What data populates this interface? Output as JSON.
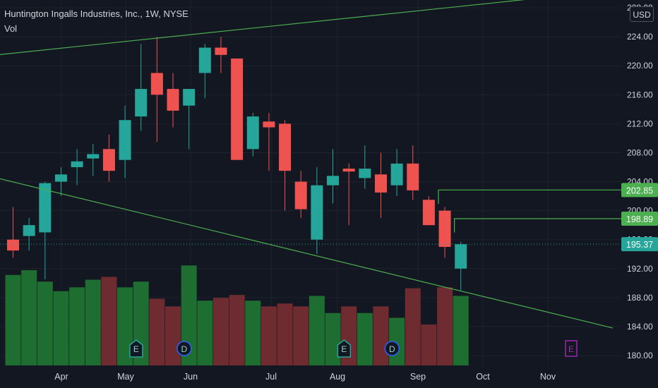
{
  "header": {
    "symbol_title": "Huntington Ingalls Industries, Inc., 1W, NYSE",
    "volume_label": "Vol"
  },
  "currency_button": "USD",
  "theme": {
    "background": "#131722",
    "grid": "#1e222d",
    "text": "#d1d4dc",
    "bull": "#26a69a",
    "bear": "#ef5350",
    "bull_vol": "#1f6e31",
    "bear_vol": "#6e2c30",
    "trendline": "#4caf50",
    "price_line": "#26a69a",
    "earnings": "#26a69a",
    "earnings_future": "#9c27b0",
    "dividend": "#2962ff"
  },
  "chart_data": {
    "type": "candlestick",
    "title": "Huntington Ingalls Industries, Inc., 1W, NYSE",
    "ylim": [
      180,
      228
    ],
    "y_ticks": [
      "180.00",
      "184.00",
      "188.00",
      "192.00",
      "196.00",
      "200.00",
      "204.00",
      "208.00",
      "212.00",
      "216.00",
      "220.00",
      "224.00",
      "228.00"
    ],
    "x_ticks": [
      "Apr",
      "May",
      "Jun",
      "Jul",
      "Aug",
      "Sep",
      "Oct",
      "Nov"
    ],
    "candles": [
      {
        "o": 196.0,
        "h": 200.5,
        "l": 193.5,
        "c": 194.5,
        "dir": "down"
      },
      {
        "o": 196.5,
        "h": 199.0,
        "l": 194.5,
        "c": 198.0,
        "dir": "up"
      },
      {
        "o": 197.0,
        "h": 204.0,
        "l": 190.5,
        "c": 203.8,
        "dir": "up"
      },
      {
        "o": 204.0,
        "h": 206.0,
        "l": 202.0,
        "c": 205.0,
        "dir": "up"
      },
      {
        "o": 206.0,
        "h": 208.5,
        "l": 203.5,
        "c": 206.8,
        "dir": "up"
      },
      {
        "o": 207.2,
        "h": 209.2,
        "l": 204.8,
        "c": 207.8,
        "dir": "up"
      },
      {
        "o": 208.5,
        "h": 210.5,
        "l": 204.0,
        "c": 205.5,
        "dir": "down"
      },
      {
        "o": 207.0,
        "h": 214.5,
        "l": 204.5,
        "c": 212.5,
        "dir": "up"
      },
      {
        "o": 213.0,
        "h": 223.0,
        "l": 211.0,
        "c": 216.8,
        "dir": "up"
      },
      {
        "o": 219.0,
        "h": 224.0,
        "l": 209.5,
        "c": 216.0,
        "dir": "down"
      },
      {
        "o": 216.8,
        "h": 219.0,
        "l": 211.5,
        "c": 213.8,
        "dir": "down"
      },
      {
        "o": 214.5,
        "h": 216.5,
        "l": 208.5,
        "c": 216.8,
        "dir": "up"
      },
      {
        "o": 219.0,
        "h": 223.0,
        "l": 215.5,
        "c": 222.5,
        "dir": "up"
      },
      {
        "o": 222.5,
        "h": 224.0,
        "l": 219.0,
        "c": 221.5,
        "dir": "down"
      },
      {
        "o": 221.0,
        "h": 221.0,
        "l": 207.0,
        "c": 207.0,
        "dir": "down"
      },
      {
        "o": 208.5,
        "h": 213.5,
        "l": 207.5,
        "c": 213.0,
        "dir": "up"
      },
      {
        "o": 212.3,
        "h": 213.5,
        "l": 205.5,
        "c": 211.5,
        "dir": "down"
      },
      {
        "o": 212.0,
        "h": 212.5,
        "l": 200.0,
        "c": 205.5,
        "dir": "down"
      },
      {
        "o": 204.0,
        "h": 205.5,
        "l": 199.0,
        "c": 200.2,
        "dir": "down"
      },
      {
        "o": 196.0,
        "h": 206.0,
        "l": 194.0,
        "c": 203.5,
        "dir": "up"
      },
      {
        "o": 203.5,
        "h": 208.5,
        "l": 201.0,
        "c": 204.8,
        "dir": "up"
      },
      {
        "o": 205.8,
        "h": 206.5,
        "l": 198.0,
        "c": 205.4,
        "dir": "down"
      },
      {
        "o": 204.5,
        "h": 209.0,
        "l": 203.0,
        "c": 205.8,
        "dir": "up"
      },
      {
        "o": 205.0,
        "h": 208.0,
        "l": 199.0,
        "c": 202.5,
        "dir": "down"
      },
      {
        "o": 203.5,
        "h": 208.5,
        "l": 202.0,
        "c": 206.5,
        "dir": "up"
      },
      {
        "o": 206.5,
        "h": 209.0,
        "l": 201.5,
        "c": 202.8,
        "dir": "down"
      },
      {
        "o": 201.5,
        "h": 202.0,
        "l": 198.0,
        "c": 198.0,
        "dir": "down"
      },
      {
        "o": 200.0,
        "h": 200.5,
        "l": 193.5,
        "c": 195.0,
        "dir": "down"
      },
      {
        "o": 192.0,
        "h": 195.7,
        "l": 189.0,
        "c": 195.37,
        "dir": "up"
      }
    ],
    "volume": [
      {
        "v": 0.95,
        "dir": "up"
      },
      {
        "v": 1.0,
        "dir": "up"
      },
      {
        "v": 0.88,
        "dir": "up"
      },
      {
        "v": 0.78,
        "dir": "up"
      },
      {
        "v": 0.82,
        "dir": "up"
      },
      {
        "v": 0.9,
        "dir": "up"
      },
      {
        "v": 0.93,
        "dir": "down"
      },
      {
        "v": 0.82,
        "dir": "up"
      },
      {
        "v": 0.88,
        "dir": "up"
      },
      {
        "v": 0.7,
        "dir": "down"
      },
      {
        "v": 0.62,
        "dir": "down"
      },
      {
        "v": 1.05,
        "dir": "up"
      },
      {
        "v": 0.68,
        "dir": "up"
      },
      {
        "v": 0.71,
        "dir": "down"
      },
      {
        "v": 0.74,
        "dir": "down"
      },
      {
        "v": 0.68,
        "dir": "up"
      },
      {
        "v": 0.62,
        "dir": "down"
      },
      {
        "v": 0.65,
        "dir": "down"
      },
      {
        "v": 0.62,
        "dir": "down"
      },
      {
        "v": 0.73,
        "dir": "up"
      },
      {
        "v": 0.55,
        "dir": "up"
      },
      {
        "v": 0.62,
        "dir": "down"
      },
      {
        "v": 0.55,
        "dir": "up"
      },
      {
        "v": 0.62,
        "dir": "down"
      },
      {
        "v": 0.5,
        "dir": "up"
      },
      {
        "v": 0.81,
        "dir": "down"
      },
      {
        "v": 0.43,
        "dir": "down"
      },
      {
        "v": 0.82,
        "dir": "down"
      },
      {
        "v": 0.73,
        "dir": "up"
      }
    ],
    "trendlines": [
      {
        "p1": {
          "bar": -1,
          "price": 221.5
        },
        "p2": {
          "bar": 37.5,
          "price": 230.4
        }
      },
      {
        "p1": {
          "bar": -1,
          "price": 204.5
        },
        "p2": {
          "bar": 37.5,
          "price": 183.8
        }
      }
    ],
    "level_lines": [
      {
        "price": 202.85,
        "from_bar": 26.6,
        "label": "202.85"
      },
      {
        "price": 198.89,
        "from_bar": 27.6,
        "label": "198.89"
      }
    ],
    "current_price": {
      "price": 195.37,
      "label": "195.37"
    },
    "event_markers": [
      {
        "bar": 7.7,
        "letter": "E",
        "kind": "earnings"
      },
      {
        "bar": 10.7,
        "letter": "D",
        "kind": "dividend"
      },
      {
        "bar": 20.7,
        "letter": "E",
        "kind": "earnings"
      },
      {
        "bar": 23.7,
        "letter": "D",
        "kind": "dividend"
      },
      {
        "bar": 34.9,
        "letter": "E",
        "kind": "earnings_future"
      }
    ]
  }
}
